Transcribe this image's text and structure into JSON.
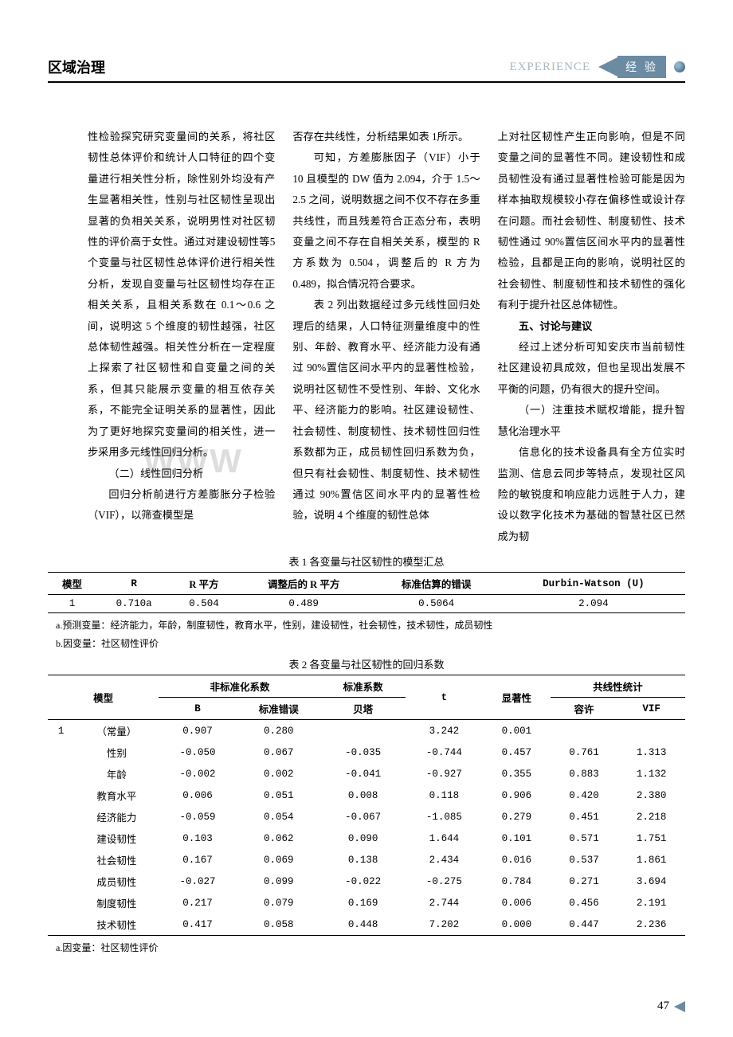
{
  "header": {
    "left": "区域治理",
    "right_en": "EXPERIENCE",
    "right_cn": "经 验"
  },
  "watermark": "WWW",
  "columns": {
    "col1": {
      "p1": "性检验探究研究变量间的关系，将社区韧性总体评价和统计人口特征的四个变量进行相关性分析，除性别外均没有产生显著相关性，性别与社区韧性呈现出显著的负相关关系，说明男性对社区韧性的评价高于女性。通过对建设韧性等5个变量与社区韧性总体评价进行相关性分析，发现自变量与社区韧性均存在正相关关系，且相关系数在 0.1～0.6 之间，说明这 5 个维度的韧性越强，社区总体韧性越强。相关性分析在一定程度上探索了社区韧性和自变量之间的关系，但其只能展示变量的相互依存关系，不能完全证明关系的显著性，因此为了更好地探究变量间的相关性，进一步采用多元线性回归分析。",
      "sub1": "（二）线性回归分析",
      "p2": "回归分析前进行方差膨胀分子检验（VIF），以筛查模型是"
    },
    "col2": {
      "p1": "否存在共线性，分析结果如表 1所示。",
      "p2": "可知，方差膨胀因子（VIF）小于 10 且模型的 DW 值为 2.094，介于 1.5～2.5 之间，说明数据之间不仅不存在多重共线性，而且残差符合正态分布，表明变量之间不存在自相关关系，模型的 R方系数为 0.504，调整后的 R 方为 0.489，拟合情况符合要求。",
      "p3": "表 2 列出数据经过多元线性回归处理后的结果，人口特征测量维度中的性别、年龄、教育水平、经济能力没有通过 90%置信区间水平内的显著性检验，说明社区韧性不受性别、年龄、文化水平、经济能力的影响。社区建设韧性、社会韧性、制度韧性、技术韧性回归性系数都为正，成员韧性回归系数为负，但只有社会韧性、制度韧性、技术韧性通过 90%置信区间水平内的显著性检验，说明 4 个维度的韧性总体"
    },
    "col3": {
      "p1": "上对社区韧性产生正向影响，但是不同变量之间的显著性不同。建设韧性和成员韧性没有通过显著性检验可能是因为样本抽取规模较小存在偏移性或设计存在问题。而社会韧性、制度韧性、技术韧性通过 90%置信区间水平内的显著性检验，且都是正向的影响，说明社区的社会韧性、制度韧性和技术韧性的强化有利于提升社区总体韧性。",
      "sec5": "五、讨论与建议",
      "p2": "经过上述分析可知安庆市当前韧性社区建设初具成效，但也呈现出发展不平衡的问题，仍有很大的提升空间。",
      "sub1": "（一）注重技术赋权增能，提升智慧化治理水平",
      "p3": "信息化的技术设备具有全方位实时监测、信息云同步等特点，发现社区风险的敏锐度和响应能力远胜于人力，建设以数字化技术为基础的智慧社区已然成为韧"
    }
  },
  "table1": {
    "caption": "表 1  各变量与社区韧性的模型汇总",
    "headers": [
      "模型",
      "R",
      "R 平方",
      "调整后的 R 平方",
      "标准估算的错误",
      "Durbin-Watson (U)"
    ],
    "row": [
      "1",
      "0.710a",
      "0.504",
      "0.489",
      "0.5064",
      "2.094"
    ],
    "note_a": "a.预测变量：经济能力，年龄，制度韧性，教育水平，性别，建设韧性，社会韧性，技术韧性，成员韧性",
    "note_b": "b.因变量：社区韧性评价"
  },
  "table2": {
    "caption": "表 2  各变量与社区韧性的回归系数",
    "group_headers": {
      "model": "模型",
      "unstd": "非标准化系数",
      "std": "标准系数",
      "colin": "共线性统计"
    },
    "headers": [
      "B",
      "标准错误",
      "贝塔",
      "t",
      "显著性",
      "容许",
      "VIF"
    ],
    "rows": [
      {
        "m": "1",
        "name": "（常量）",
        "B": "0.907",
        "SE": "0.280",
        "Beta": "",
        "t": "3.242",
        "Sig": "0.001",
        "Tol": "",
        "VIF": ""
      },
      {
        "m": "",
        "name": "性别",
        "B": "-0.050",
        "SE": "0.067",
        "Beta": "-0.035",
        "t": "-0.744",
        "Sig": "0.457",
        "Tol": "0.761",
        "VIF": "1.313"
      },
      {
        "m": "",
        "name": "年龄",
        "B": "-0.002",
        "SE": "0.002",
        "Beta": "-0.041",
        "t": "-0.927",
        "Sig": "0.355",
        "Tol": "0.883",
        "VIF": "1.132"
      },
      {
        "m": "",
        "name": "教育水平",
        "B": "0.006",
        "SE": "0.051",
        "Beta": "0.008",
        "t": "0.118",
        "Sig": "0.906",
        "Tol": "0.420",
        "VIF": "2.380"
      },
      {
        "m": "",
        "name": "经济能力",
        "B": "-0.059",
        "SE": "0.054",
        "Beta": "-0.067",
        "t": "-1.085",
        "Sig": "0.279",
        "Tol": "0.451",
        "VIF": "2.218"
      },
      {
        "m": "",
        "name": "建设韧性",
        "B": "0.103",
        "SE": "0.062",
        "Beta": "0.090",
        "t": "1.644",
        "Sig": "0.101",
        "Tol": "0.571",
        "VIF": "1.751"
      },
      {
        "m": "",
        "name": "社会韧性",
        "B": "0.167",
        "SE": "0.069",
        "Beta": "0.138",
        "t": "2.434",
        "Sig": "0.016",
        "Tol": "0.537",
        "VIF": "1.861"
      },
      {
        "m": "",
        "name": "成员韧性",
        "B": "-0.027",
        "SE": "0.099",
        "Beta": "-0.022",
        "t": "-0.275",
        "Sig": "0.784",
        "Tol": "0.271",
        "VIF": "3.694"
      },
      {
        "m": "",
        "name": "制度韧性",
        "B": "0.217",
        "SE": "0.079",
        "Beta": "0.169",
        "t": "2.744",
        "Sig": "0.006",
        "Tol": "0.456",
        "VIF": "2.191"
      },
      {
        "m": "",
        "name": "技术韧性",
        "B": "0.417",
        "SE": "0.058",
        "Beta": "0.448",
        "t": "7.202",
        "Sig": "0.000",
        "Tol": "0.447",
        "VIF": "2.236"
      }
    ],
    "note_a": "a.因变量：社区韧性评价"
  },
  "page_number": "47"
}
